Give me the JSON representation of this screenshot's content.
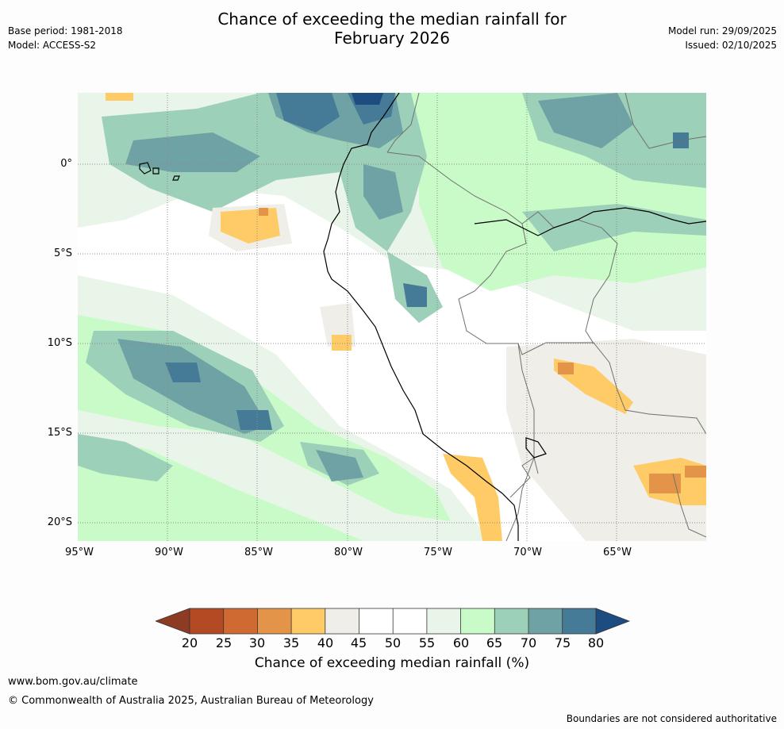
{
  "header": {
    "title_line1": "Chance of exceeding the median rainfall for",
    "title_line2": "February 2026",
    "base_period": "Base period: 1981-2018",
    "model": "Model: ACCESS-S2",
    "model_run": "Model run: 29/09/2025",
    "issued": "Issued: 02/10/2025"
  },
  "map": {
    "lat_labels": [
      "0°",
      "5°S",
      "10°S",
      "15°S",
      "20°S"
    ],
    "lon_labels": [
      "95°W",
      "90°W",
      "85°W",
      "80°W",
      "75°W",
      "70°W",
      "65°W"
    ],
    "background_color": "#ffffff",
    "grid": true
  },
  "colorbar": {
    "title": "Chance of exceeding median rainfall (%)",
    "labels": [
      "20",
      "25",
      "30",
      "35",
      "40",
      "45",
      "50",
      "55",
      "60",
      "65",
      "70",
      "75",
      "80"
    ],
    "colors": [
      "#8e3b23",
      "#b34a24",
      "#cf6a33",
      "#e39448",
      "#fecb66",
      "#efeee8",
      "#ffffff",
      "#ffffff",
      "#e9f5e9",
      "#c8fbc8",
      "#9dd0b8",
      "#6ea2a5",
      "#457b97",
      "#1c4c80"
    ]
  },
  "footer": {
    "url": "www.bom.gov.au/climate",
    "copyright": "© Commonwealth of Australia 2025, Australian Bureau of Meteorology",
    "disclaimer": "Boundaries are not considered authoritative"
  }
}
